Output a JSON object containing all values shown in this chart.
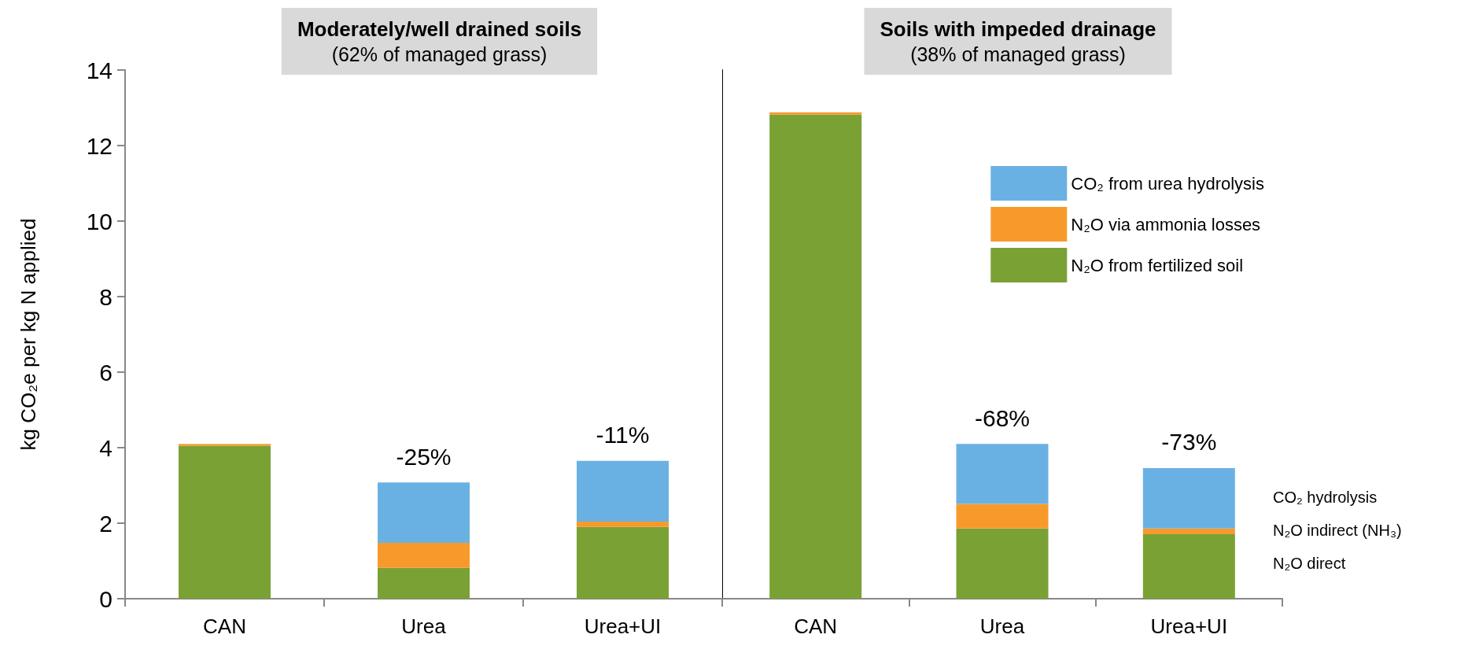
{
  "chart_data": [
    {
      "type": "bar",
      "title": "Moderately/well drained soils",
      "subtitle": "(62% of managed grass)",
      "ylabel": "kg CO₂e per kg N applied",
      "categories": [
        "CAN",
        "Urea",
        "Urea+UI"
      ],
      "stacked": true,
      "series": [
        {
          "color": "#7aa133",
          "values": [
            4.05,
            0.82,
            1.9
          ]
        },
        {
          "color": "#f79a2b",
          "values": [
            0.05,
            0.66,
            0.14
          ]
        },
        {
          "color": "#6ab1e3",
          "values": [
            0,
            1.6,
            1.61
          ]
        }
      ],
      "ylim": [
        0,
        14
      ],
      "yticks": [
        0,
        2,
        4,
        6,
        8,
        10,
        12,
        14
      ],
      "grid": false,
      "legend": false,
      "annotations": [
        {
          "text": "-25%",
          "x": "Urea",
          "y": 3.08
        },
        {
          "text": "-11%",
          "x": "Urea+UI",
          "y": 3.65
        }
      ]
    },
    {
      "type": "bar",
      "title": "Soils with impeded drainage",
      "subtitle": "(38% of managed grass)",
      "categories": [
        "CAN",
        "Urea",
        "Urea+UI"
      ],
      "stacked": true,
      "series": [
        {
          "name": "N₂O from fertilized soil",
          "color": "#7aa133",
          "values": [
            12.82,
            1.86,
            1.71
          ]
        },
        {
          "name": "N₂O via ammonia losses",
          "color": "#f79a2b",
          "values": [
            0.06,
            0.65,
            0.15
          ]
        },
        {
          "name": "CO₂ from urea hydrolysis",
          "color": "#6ab1e3",
          "values": [
            0,
            1.59,
            1.6
          ]
        }
      ],
      "ylim": [
        0,
        14
      ],
      "yticks": [
        0,
        2,
        4,
        6,
        8,
        10,
        12,
        14
      ],
      "tick_labels": "x",
      "grid": false,
      "legend": "top right",
      "annotations": [
        {
          "text": "-68%",
          "x": "Urea",
          "y": 4.1
        },
        {
          "text": "-73%",
          "x": "Urea+UI",
          "y": 3.46
        },
        "CO₂ hydrolysis",
        "N₂O indirect (NH₃)",
        "N₂O direct"
      ]
    }
  ]
}
